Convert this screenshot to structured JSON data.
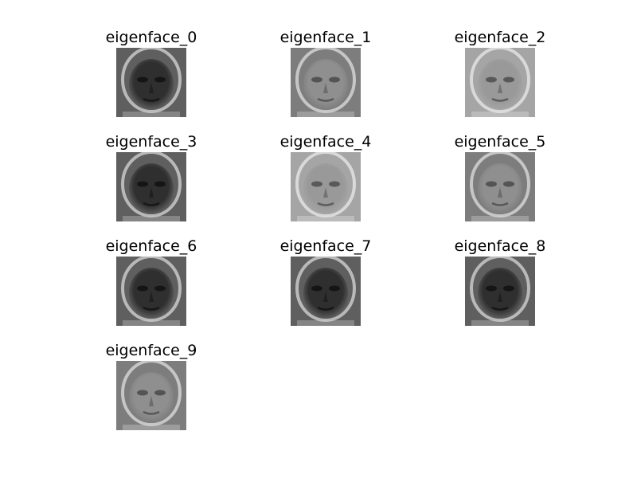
{
  "figure": {
    "panels": [
      {
        "title": "eigenface_0",
        "tone": "dark"
      },
      {
        "title": "eigenface_1",
        "tone": "mid"
      },
      {
        "title": "eigenface_2",
        "tone": "light"
      },
      {
        "title": "eigenface_3",
        "tone": "dark"
      },
      {
        "title": "eigenface_4",
        "tone": "light"
      },
      {
        "title": "eigenface_5",
        "tone": "mid"
      },
      {
        "title": "eigenface_6",
        "tone": "dark"
      },
      {
        "title": "eigenface_7",
        "tone": "dark"
      },
      {
        "title": "eigenface_8",
        "tone": "dark"
      },
      {
        "title": "eigenface_9",
        "tone": "mid"
      }
    ]
  }
}
